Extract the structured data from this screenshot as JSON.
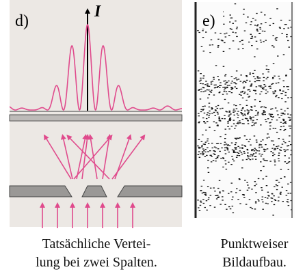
{
  "panels": [
    {
      "label": "d)",
      "axis_label": "I",
      "caption": [
        "Tatsächliche Vertei-",
        "lung bei zwei Spalten."
      ]
    },
    {
      "label": "e)",
      "caption": [
        "Punktweiser",
        "Bildaufbau."
      ]
    }
  ]
}
